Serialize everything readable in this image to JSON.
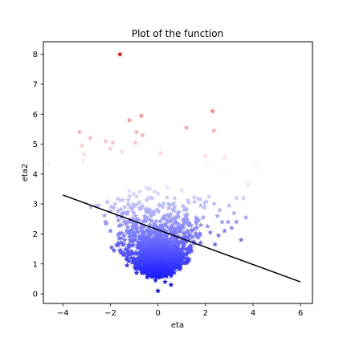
{
  "chart_data": {
    "type": "scatter",
    "title": "Plot of the function",
    "xlabel": "eta",
    "ylabel": "eta2",
    "xlim": [
      -4.82,
      6.5
    ],
    "ylim": [
      -0.32,
      8.42
    ],
    "x_ticks": [
      -4,
      -2,
      0,
      2,
      4,
      6
    ],
    "y_ticks": [
      0,
      1,
      2,
      3,
      4,
      5,
      6,
      7,
      8
    ],
    "x_tick_labels": [
      "−4",
      "−2",
      "0",
      "2",
      "4",
      "6"
    ],
    "y_tick_labels": [
      "0",
      "1",
      "2",
      "3",
      "4",
      "5",
      "6",
      "7",
      "8"
    ],
    "grid": false,
    "legend": false,
    "marker": "star",
    "colormap": {
      "type": "bwr",
      "low_color": "#0000ff",
      "mid_color": "#ffffff",
      "high_color": "#ff0000",
      "vmin": 0.1,
      "vmax": 8.0
    },
    "line": {
      "color": "#000000",
      "x": [
        -4.0,
        6.0
      ],
      "y": [
        3.3,
        0.4
      ]
    },
    "points": [
      [
        -1.6,
        8.0
      ],
      [
        -4.6,
        4.35
      ],
      [
        -3.3,
        5.4
      ],
      [
        -3.2,
        4.95
      ],
      [
        -3.1,
        4.65
      ],
      [
        -3.15,
        4.45
      ],
      [
        -2.85,
        5.2
      ],
      [
        -2.2,
        5.1
      ],
      [
        -2.0,
        4.85
      ],
      [
        -1.9,
        5.05
      ],
      [
        -1.5,
        4.75
      ],
      [
        -1.2,
        5.8
      ],
      [
        -0.95,
        5.05
      ],
      [
        -0.9,
        5.4
      ],
      [
        -0.7,
        5.95
      ],
      [
        -0.65,
        5.3
      ],
      [
        0.1,
        4.7
      ],
      [
        1.2,
        5.55
      ],
      [
        2.3,
        6.1
      ],
      [
        2.35,
        5.45
      ],
      [
        2.0,
        4.6
      ],
      [
        2.1,
        4.3
      ],
      [
        2.8,
        4.55
      ],
      [
        2.5,
        4.15
      ],
      [
        2.9,
        4.15
      ],
      [
        4.15,
        4.25
      ],
      [
        3.8,
        3.65
      ],
      [
        3.3,
        3.2
      ],
      [
        3.6,
        3.2
      ],
      [
        3.0,
        2.95
      ],
      [
        2.15,
        3.25
      ],
      [
        2.6,
        2.8
      ],
      [
        3.2,
        2.7
      ],
      [
        2.5,
        2.6
      ],
      [
        3.7,
        2.55
      ],
      [
        3.5,
        1.8
      ],
      [
        2.4,
        1.65
      ],
      [
        2.2,
        2.05
      ],
      [
        2.8,
        2.1
      ],
      [
        3.1,
        2.2
      ],
      [
        3.3,
        2.4
      ],
      [
        2.95,
        2.4
      ],
      [
        2.7,
        2.4
      ],
      [
        2.55,
        1.95
      ],
      [
        1.9,
        2.55
      ],
      [
        1.8,
        2.95
      ],
      [
        1.5,
        1.75
      ],
      [
        -2.2,
        2.4
      ],
      [
        -1.95,
        1.55
      ],
      [
        -2.0,
        2.1
      ],
      [
        -1.85,
        1.45
      ],
      [
        -1.6,
        1.45
      ],
      [
        -1.3,
        0.95
      ],
      [
        -0.9,
        0.7
      ],
      [
        0.0,
        0.1
      ],
      [
        0.55,
        0.3
      ],
      [
        0.65,
        0.8
      ],
      [
        -1.8,
        3.0
      ],
      [
        -2.5,
        2.95
      ],
      [
        -1.2,
        3.45
      ],
      [
        -0.5,
        3.55
      ],
      [
        0.4,
        3.55
      ],
      [
        1.0,
        3.45
      ],
      [
        1.3,
        3.05
      ],
      [
        1.6,
        2.55
      ],
      [
        1.45,
        2.1
      ],
      [
        1.2,
        1.75
      ],
      [
        1.05,
        1.35
      ],
      [
        0.85,
        1.05
      ],
      [
        0.55,
        0.6
      ],
      [
        0.3,
        0.4
      ],
      [
        -0.1,
        0.45
      ],
      [
        -0.45,
        0.55
      ],
      [
        -0.75,
        0.95
      ],
      [
        -1.05,
        1.35
      ],
      [
        -1.4,
        1.8
      ],
      [
        -1.55,
        2.3
      ],
      [
        -1.4,
        2.9
      ],
      [
        -0.9,
        3.25
      ],
      [
        0.0,
        3.35
      ],
      [
        0.7,
        3.2
      ],
      [
        1.15,
        2.85
      ],
      [
        1.3,
        2.35
      ],
      [
        -1.25,
        1.55
      ],
      [
        -0.6,
        0.85
      ],
      [
        0.35,
        0.7
      ]
    ]
  }
}
